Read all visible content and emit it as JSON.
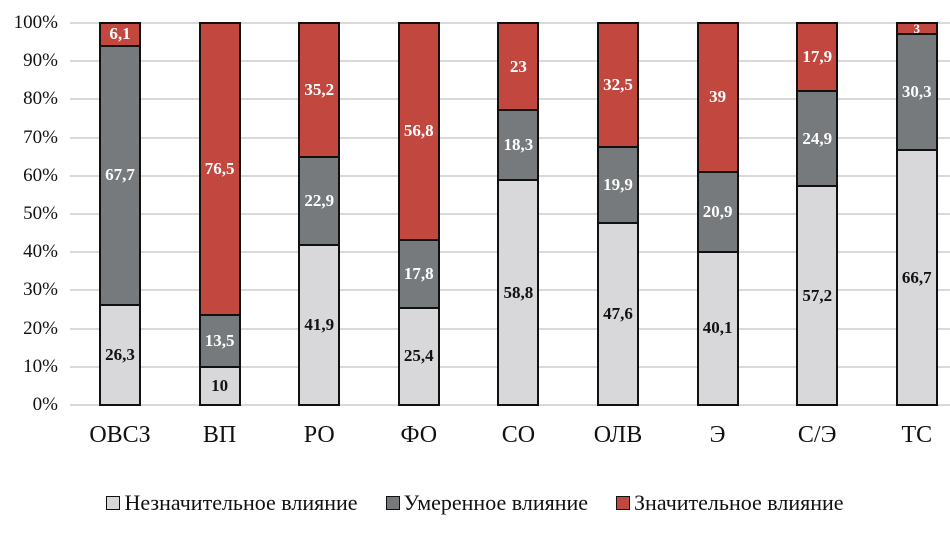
{
  "chart_data": {
    "type": "bar",
    "stacked": true,
    "normalized_percent": true,
    "title": "",
    "xlabel": "",
    "ylabel": "",
    "ylim": [
      0,
      100
    ],
    "y_ticks": [
      "0%",
      "10%",
      "20%",
      "30%",
      "40%",
      "50%",
      "60%",
      "70%",
      "80%",
      "90%",
      "100%"
    ],
    "grid": true,
    "legend_position": "bottom",
    "categories": [
      "ОВСЗ",
      "ВП",
      "РО",
      "ФО",
      "СО",
      "ОЛВ",
      "Э",
      "С/Э",
      "ТС"
    ],
    "series": [
      {
        "name": "Незначительное влияние",
        "color": "#d8d8da",
        "label_color": "#111111",
        "values": [
          26.3,
          10,
          41.9,
          25.4,
          58.8,
          47.6,
          40.1,
          57.2,
          66.7
        ],
        "labels": [
          "26,3",
          "10",
          "41,9",
          "25,4",
          "58,8",
          "47,6",
          "40,1",
          "57,2",
          "66,7"
        ]
      },
      {
        "name": "Умеренное влияние",
        "color": "#767a7d",
        "label_color": "#ffffff",
        "values": [
          67.7,
          13.5,
          22.9,
          17.8,
          18.3,
          19.9,
          20.9,
          24.9,
          30.3
        ],
        "labels": [
          "67,7",
          "13,5",
          "22,9",
          "17,8",
          "18,3",
          "19,9",
          "20,9",
          "24,9",
          "30,3"
        ]
      },
      {
        "name": "Значительное влияние",
        "color": "#c2473f",
        "label_color": "#ffffff",
        "values": [
          6.1,
          76.5,
          35.2,
          56.8,
          23,
          32.5,
          39,
          17.9,
          3
        ],
        "labels": [
          "6,1",
          "76,5",
          "35,2",
          "56,8",
          "23",
          "32,5",
          "39",
          "17,9",
          "3"
        ]
      }
    ]
  }
}
